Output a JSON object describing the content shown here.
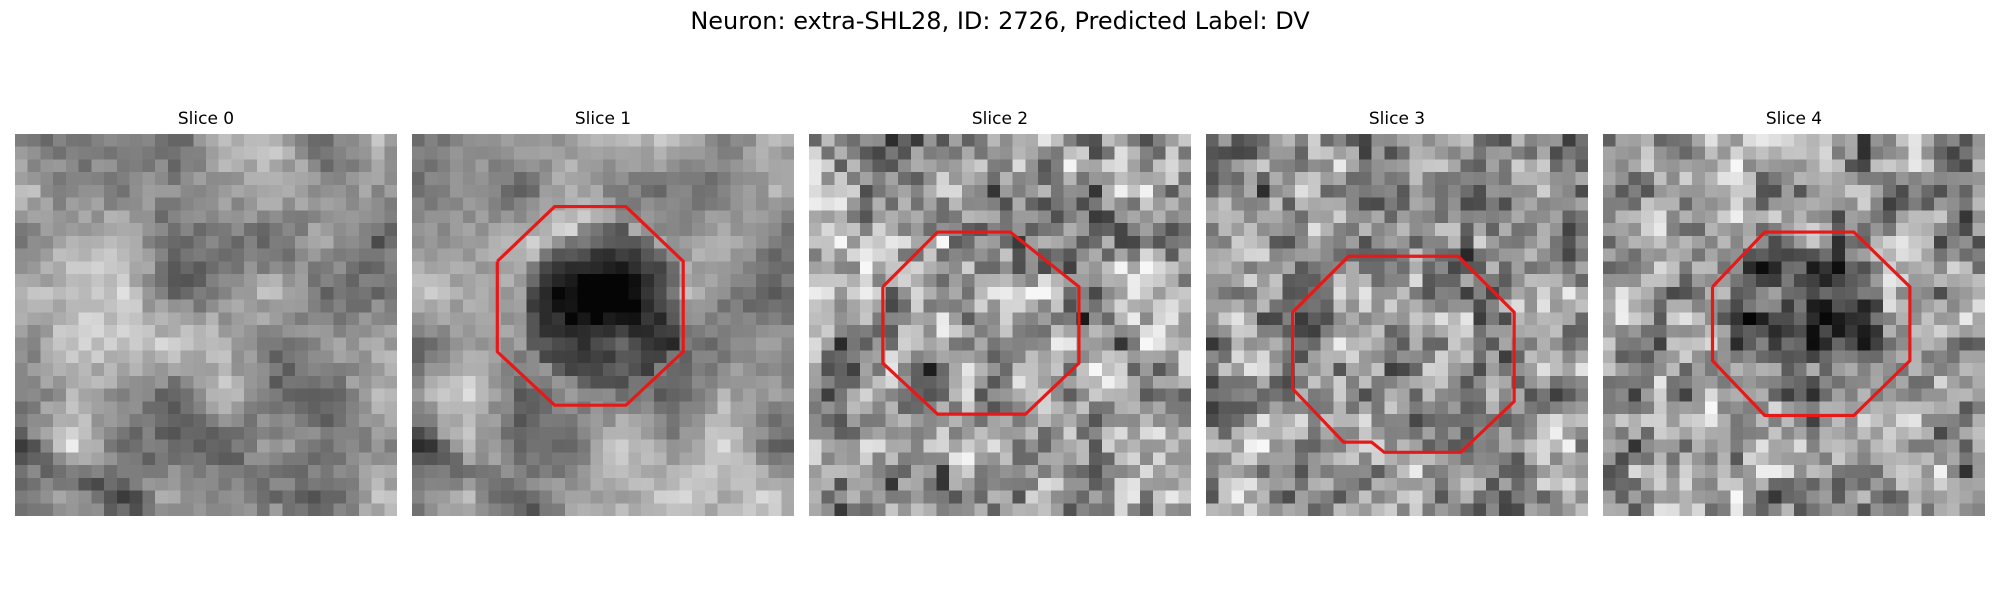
{
  "figure": {
    "title": "Neuron: extra-SHL28, ID: 2726, Predicted Label: DV"
  },
  "panels": [
    {
      "title": "Slice 0",
      "has_outline": false
    },
    {
      "title": "Slice 1",
      "has_outline": true
    },
    {
      "title": "Slice 2",
      "has_outline": true
    },
    {
      "title": "Slice 3",
      "has_outline": true
    },
    {
      "title": "Slice 4",
      "has_outline": true
    }
  ],
  "colors": {
    "outline": "#e61919",
    "colormap": "grayscale"
  }
}
